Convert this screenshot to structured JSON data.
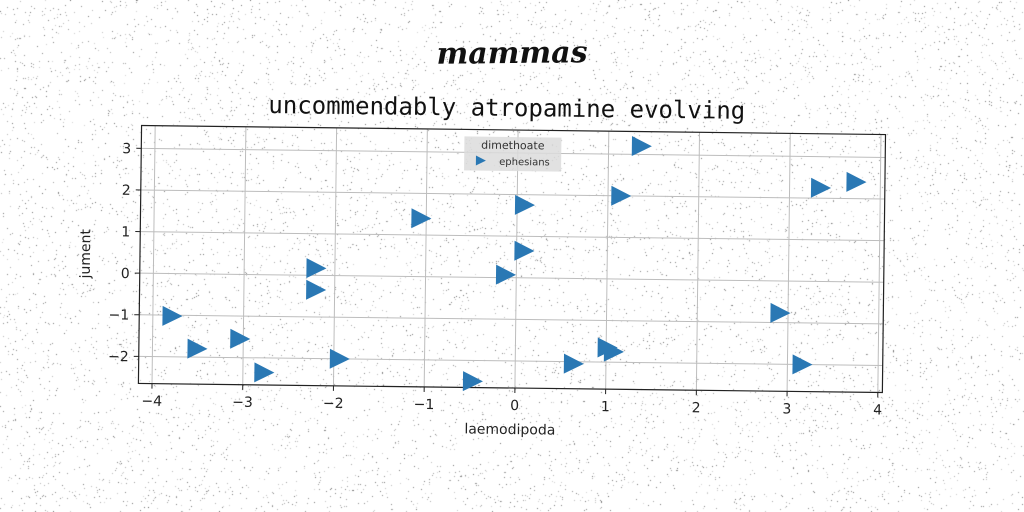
{
  "suptitle": "mammas",
  "chart_data": {
    "type": "scatter",
    "title": "uncommendably atropamine evolving",
    "xlabel": "laemodipoda",
    "ylabel": "jument",
    "xlim": [
      -4.15,
      4.05
    ],
    "ylim": [
      -2.65,
      3.55
    ],
    "xticks": [
      -4,
      -3,
      -2,
      -1,
      0,
      1,
      2,
      3,
      4
    ],
    "yticks": [
      -2,
      -1,
      0,
      1,
      2,
      3
    ],
    "xtick_labels": [
      "−4",
      "−3",
      "−2",
      "−1",
      "0",
      "1",
      "2",
      "3",
      "4"
    ],
    "ytick_labels": [
      "−2",
      "−1",
      "0",
      "1",
      "2",
      "3"
    ],
    "grid": true,
    "legend": {
      "title": "dimethoate",
      "placement": "top-center"
    },
    "series": [
      {
        "name": "ephesians",
        "marker": "triangle-right",
        "color": "#2a78b4",
        "x": [
          1.35,
          1.13,
          3.33,
          3.72,
          0.07,
          -1.07,
          0.07,
          -2.22,
          -0.13,
          -2.22,
          2.9,
          -3.8,
          -3.52,
          -3.05,
          1.0,
          1.07,
          -2.78,
          -1.95,
          0.63,
          3.15,
          -0.48
        ],
        "y": [
          3.2,
          2.0,
          2.25,
          2.4,
          1.75,
          1.4,
          0.65,
          0.17,
          0.07,
          -0.35,
          -0.77,
          -1.02,
          -1.8,
          -1.55,
          -1.65,
          -1.75,
          -2.35,
          -2.0,
          -2.05,
          -2.0,
          -2.5
        ]
      }
    ]
  }
}
